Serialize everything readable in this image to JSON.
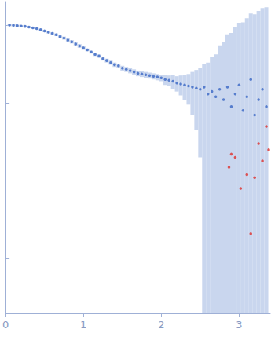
{
  "chart_data": {
    "type": "scatter",
    "log": "y",
    "grid": false,
    "tick_labels": "x",
    "xlim": [
      0,
      3.4
    ],
    "xticks": [
      0,
      1,
      2,
      3
    ],
    "ylim": [
      0.0002,
      2
    ],
    "yticks": [
      0.001,
      0.01,
      0.1,
      1
    ],
    "series": [
      {
        "color": "#3a66c4",
        "marker": "circle",
        "x": [
          0.05,
          0.1,
          0.15,
          0.2,
          0.25,
          0.3,
          0.35,
          0.4,
          0.45,
          0.5,
          0.55,
          0.6,
          0.65,
          0.7,
          0.75,
          0.8,
          0.85,
          0.9,
          0.95,
          1.0,
          1.05,
          1.1,
          1.15,
          1.2,
          1.25,
          1.3,
          1.35,
          1.4,
          1.45,
          1.5,
          1.55,
          1.6,
          1.65,
          1.7,
          1.75,
          1.8,
          1.85,
          1.9,
          1.95,
          2.0,
          2.05,
          2.1,
          2.15,
          2.2,
          2.25,
          2.3,
          2.35,
          2.4,
          2.45,
          2.5,
          2.55,
          2.6,
          2.65,
          2.7,
          2.75,
          2.8,
          2.85,
          2.9,
          2.95,
          3.0,
          3.05,
          3.1,
          3.15,
          3.2,
          3.25,
          3.3,
          3.35
        ],
        "values": [
          1.0,
          0.99,
          0.98,
          0.97,
          0.96,
          0.94,
          0.92,
          0.9,
          0.87,
          0.84,
          0.81,
          0.78,
          0.75,
          0.71,
          0.68,
          0.64,
          0.61,
          0.57,
          0.54,
          0.51,
          0.48,
          0.45,
          0.42,
          0.4,
          0.37,
          0.35,
          0.33,
          0.31,
          0.3,
          0.28,
          0.27,
          0.26,
          0.25,
          0.24,
          0.235,
          0.23,
          0.225,
          0.22,
          0.215,
          0.21,
          0.2,
          0.195,
          0.19,
          0.18,
          0.175,
          0.17,
          0.165,
          0.16,
          0.155,
          0.15,
          0.16,
          0.13,
          0.14,
          0.12,
          0.15,
          0.11,
          0.16,
          0.09,
          0.13,
          0.17,
          0.08,
          0.12,
          0.2,
          0.07,
          0.11,
          0.15,
          0.09
        ],
        "errors": [
          0.03,
          0.03,
          0.03,
          0.03,
          0.03,
          0.03,
          0.03,
          0.03,
          0.03,
          0.03,
          0.03,
          0.03,
          0.03,
          0.03,
          0.03,
          0.03,
          0.03,
          0.03,
          0.03,
          0.03,
          0.02,
          0.02,
          0.02,
          0.02,
          0.02,
          0.02,
          0.02,
          0.02,
          0.02,
          0.02,
          0.02,
          0.02,
          0.02,
          0.02,
          0.02,
          0.02,
          0.02,
          0.02,
          0.02,
          0.02,
          0.03,
          0.03,
          0.04,
          0.04,
          0.05,
          0.06,
          0.07,
          0.09,
          0.11,
          0.13,
          0.16,
          0.2,
          0.25,
          0.3,
          0.4,
          0.5,
          0.6,
          0.7,
          0.8,
          0.9,
          1.0,
          1.1,
          1.2,
          1.3,
          1.4,
          1.5,
          1.6
        ]
      },
      {
        "color": "#e0302c",
        "marker": "circle",
        "x": [
          2.87,
          2.9,
          2.95,
          3.02,
          3.1,
          3.15,
          3.2,
          3.25,
          3.3,
          3.35,
          3.38
        ],
        "values": [
          0.015,
          0.022,
          0.02,
          0.008,
          0.012,
          0.0021,
          0.011,
          0.03,
          0.018,
          0.05,
          0.025
        ]
      }
    ]
  }
}
